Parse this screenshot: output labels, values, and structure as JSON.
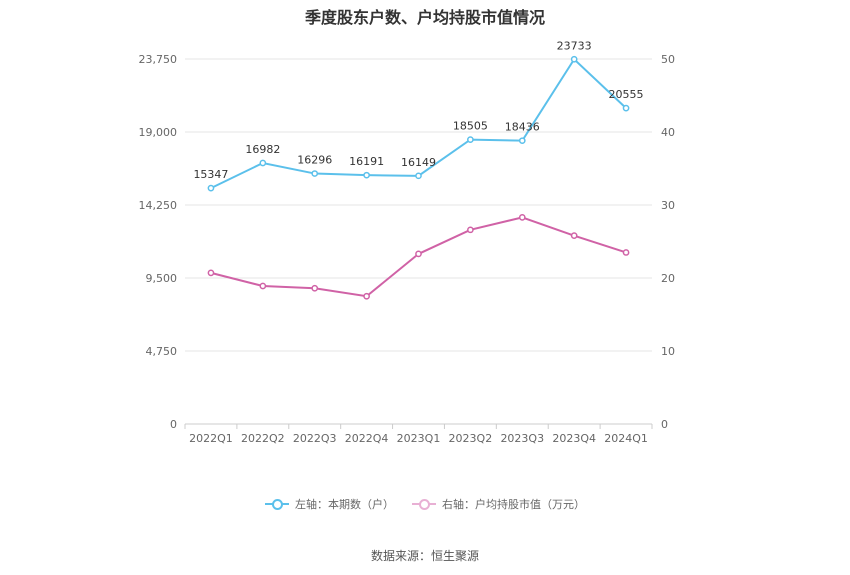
{
  "title": "季度股东户数、户均持股市值情况",
  "source": "数据来源：恒生聚源",
  "colors": {
    "left": "#5bc0eb",
    "right": "#d062a6",
    "grid": "#e6e6e6"
  },
  "legend": {
    "left": "左轴：本期数（户）",
    "right": "右轴：户均持股市值（万元）"
  },
  "chart_data": {
    "type": "line",
    "title": "季度股东户数、户均持股市值情况",
    "categories": [
      "2022Q1",
      "2022Q2",
      "2022Q3",
      "2022Q4",
      "2023Q1",
      "2023Q2",
      "2023Q3",
      "2023Q4",
      "2024Q1"
    ],
    "y_left": {
      "ticks": [
        0,
        4750,
        9500,
        14250,
        19000,
        23750
      ],
      "tick_labels": [
        "0",
        "4,750",
        "9,500",
        "14,250",
        "19,000",
        "23,750"
      ],
      "range": [
        0,
        23750
      ]
    },
    "y_right": {
      "ticks": [
        0,
        10,
        20,
        30,
        40,
        50
      ],
      "tick_labels": [
        "0",
        "10",
        "20",
        "30",
        "40",
        "50"
      ],
      "range": [
        0,
        50
      ]
    },
    "series": [
      {
        "name": "左轴：本期数（户）",
        "axis": "left",
        "values": [
          15347,
          16982,
          16296,
          16191,
          16149,
          18505,
          18436,
          23733,
          20555
        ],
        "labels": [
          "15347",
          "16982",
          "16296",
          "16191",
          "16149",
          "18505",
          "18436",
          "23733",
          "20555"
        ]
      },
      {
        "name": "右轴：户均持股市值（万元）",
        "axis": "right",
        "values": [
          20.7,
          18.9,
          18.6,
          17.5,
          23.3,
          26.6,
          28.3,
          25.8,
          23.5
        ]
      }
    ],
    "grid": true,
    "legend_position": "bottom"
  }
}
